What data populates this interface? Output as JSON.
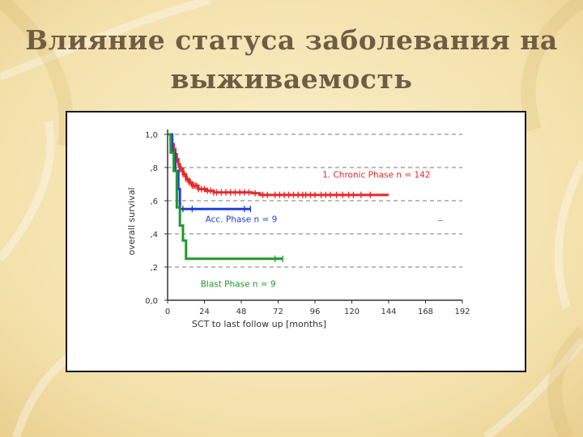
{
  "slide": {
    "title_line1": "Влияние статуса заболевания на",
    "title_line2": "выживаемость"
  },
  "colors": {
    "background": "#f6e7b8",
    "title": "#6f5e44",
    "chronic": "#e8282a",
    "accelerated": "#2140d8",
    "blast": "#1f9a2a"
  },
  "chart_data": {
    "type": "line",
    "subtype": "kaplan-meier",
    "title": "",
    "xlabel": "SCT to last follow up [months]",
    "ylabel": "overall survival",
    "xlim": [
      0,
      192
    ],
    "ylim": [
      0,
      1
    ],
    "x_ticks": [
      0,
      24,
      48,
      72,
      96,
      120,
      144,
      168,
      192
    ],
    "x_tick_labels": [
      "0",
      "24",
      "48",
      "72",
      "96",
      "120",
      "144",
      "168",
      "192"
    ],
    "y_ticks": [
      0,
      0.2,
      0.4,
      0.6,
      0.8,
      1.0
    ],
    "y_tick_labels": [
      "0,0",
      ",2",
      ",4",
      ",6",
      ",8",
      "1,0"
    ],
    "grid": "horizontal dashed",
    "series": [
      {
        "name": "1. Chronic Phase n = 142",
        "color": "#e8282a",
        "x": [
          0,
          2,
          3,
          4,
          5,
          6,
          7,
          8,
          10,
          12,
          14,
          16,
          20,
          25,
          30,
          40,
          55,
          60,
          144
        ],
        "y": [
          1.0,
          0.97,
          0.94,
          0.91,
          0.88,
          0.85,
          0.82,
          0.79,
          0.76,
          0.73,
          0.71,
          0.69,
          0.67,
          0.66,
          0.65,
          0.65,
          0.645,
          0.635,
          0.635
        ],
        "censored_x": [
          3,
          4,
          5,
          6,
          7,
          8,
          9,
          10,
          11,
          12,
          13,
          14,
          15,
          16,
          17,
          18,
          19,
          20,
          22,
          24,
          26,
          28,
          30,
          32,
          35,
          38,
          41,
          44,
          47,
          50,
          53,
          57,
          62,
          65,
          70,
          73,
          76,
          79,
          82,
          85,
          88,
          90,
          93,
          96,
          100,
          103,
          106,
          110,
          114,
          118,
          121,
          126,
          132
        ]
      },
      {
        "name": "Acc. Phase n = 9",
        "color": "#2140d8",
        "x": [
          0,
          3,
          5,
          7,
          8,
          54
        ],
        "y": [
          1.0,
          0.89,
          0.78,
          0.67,
          0.55,
          0.55
        ],
        "censored_x": [
          10,
          16,
          50,
          54
        ]
      },
      {
        "name": "Blast Phase n = 9",
        "color": "#1f9a2a",
        "x": [
          0,
          2,
          4,
          6,
          8,
          10,
          12,
          75
        ],
        "y": [
          1.0,
          0.89,
          0.78,
          0.56,
          0.45,
          0.36,
          0.25,
          0.25
        ],
        "censored_x": [
          70,
          75
        ]
      }
    ]
  }
}
